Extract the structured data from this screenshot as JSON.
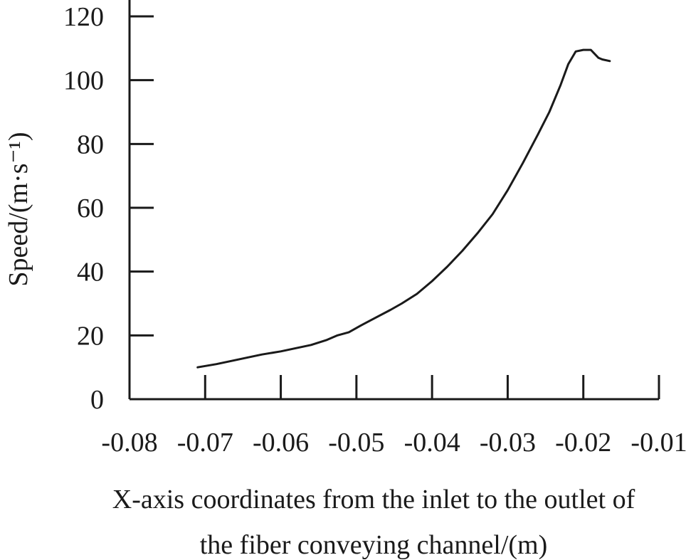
{
  "chart_data": {
    "type": "line",
    "title": "",
    "xlabel_lines": [
      "X-axis coordinates from the inlet to the outlet of",
      "the fiber conveying channel/(m)"
    ],
    "ylabel": "Speed/(m·s⁻¹)",
    "xlim": [
      -0.08,
      -0.01
    ],
    "ylim": [
      0,
      120
    ],
    "xticks": [
      -0.08,
      -0.07,
      -0.06,
      -0.05,
      -0.04,
      -0.03,
      -0.02,
      -0.01
    ],
    "xtick_labels": [
      "-0.08",
      "-0.07",
      "-0.06",
      "-0.05",
      "-0.04",
      "-0.03",
      "-0.02",
      "-0.01"
    ],
    "yticks": [
      0,
      20,
      40,
      60,
      80,
      100,
      120
    ],
    "ytick_labels": [
      "0",
      "20",
      "40",
      "60",
      "80",
      "100",
      "120"
    ],
    "grid": false,
    "series": [
      {
        "x": [
          -0.071,
          -0.0685,
          -0.0665,
          -0.0645,
          -0.0625,
          -0.06,
          -0.058,
          -0.056,
          -0.054,
          -0.0525,
          -0.051,
          -0.0495,
          -0.0475,
          -0.0455,
          -0.044,
          -0.042,
          -0.04,
          -0.038,
          -0.036,
          -0.034,
          -0.032,
          -0.03,
          -0.028,
          -0.026,
          -0.0245,
          -0.023,
          -0.022,
          -0.021,
          -0.02,
          -0.019,
          -0.018,
          -0.0175,
          -0.0165
        ],
        "y": [
          10,
          11,
          12,
          13,
          14,
          15,
          16,
          17,
          18.5,
          20,
          21,
          23,
          25.5,
          28,
          30,
          33,
          37,
          41.5,
          46.5,
          52,
          58,
          65.5,
          74,
          83,
          90,
          98.5,
          105,
          109,
          109.5,
          109.5,
          107,
          106.5,
          106
        ]
      }
    ]
  }
}
